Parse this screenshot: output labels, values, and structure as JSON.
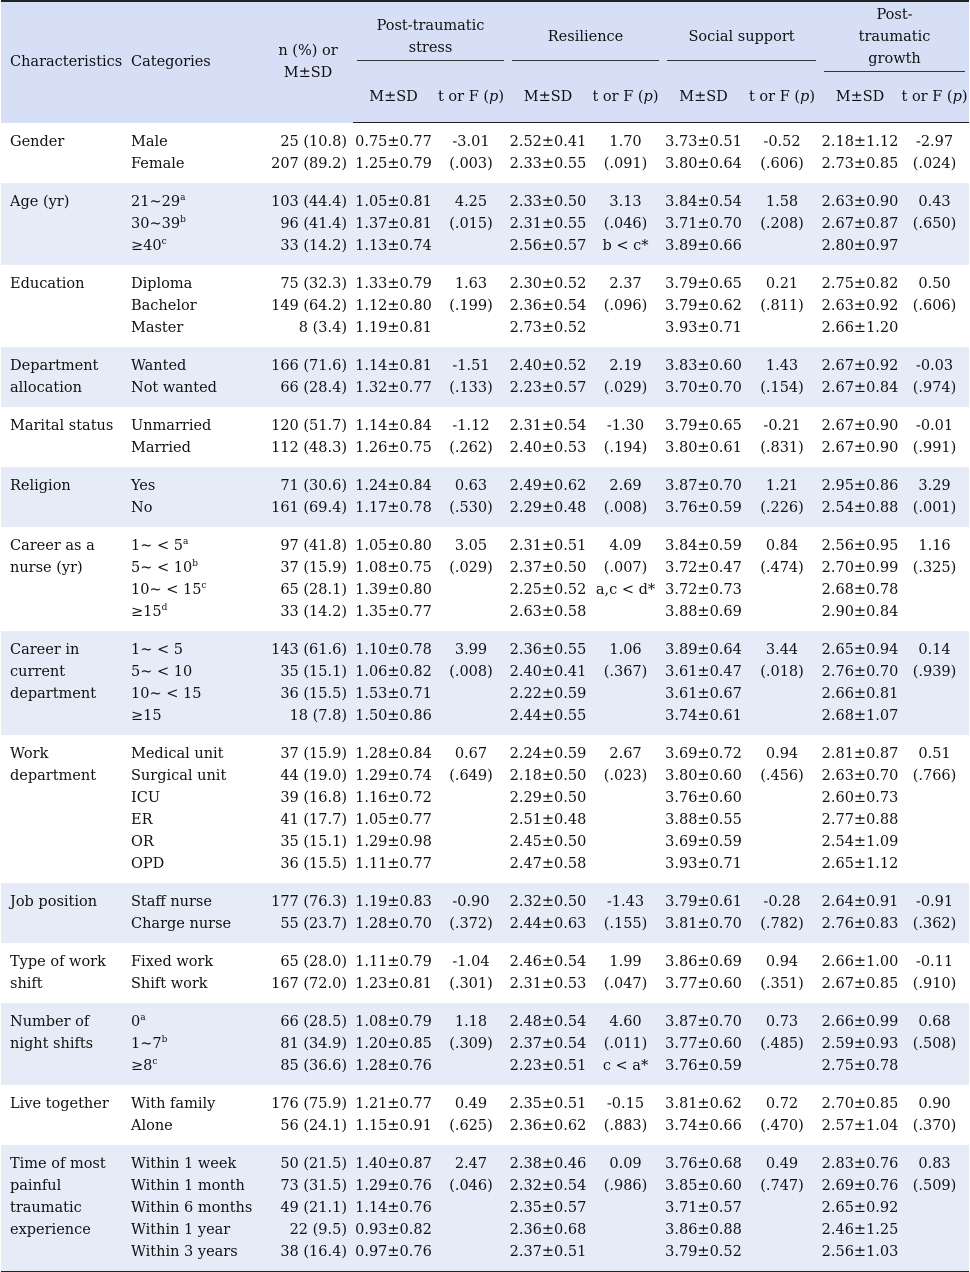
{
  "header": {
    "characteristics": "Characteristics",
    "categories": "Categories",
    "n_label": "n (%) or M±SD",
    "groups": [
      "Post-traumatic stress",
      "Resilience",
      "Social support",
      "Post-traumatic growth"
    ],
    "sub_msd": "M±SD",
    "sub_stat": "t or F (p)"
  },
  "rows": [
    {
      "characteristic": "Gender",
      "cats": [
        [
          "Male"
        ],
        [
          "Female"
        ]
      ],
      "n": [
        "25 (10.8)",
        "207 (89.2)"
      ],
      "pts": [
        "0.75±0.77",
        "1.25±0.79"
      ],
      "pts_t": [
        "-3.01",
        "(.003)"
      ],
      "res": [
        "2.52±0.41",
        "2.33±0.55"
      ],
      "res_t": [
        "1.70",
        "(.091)"
      ],
      "ss": [
        "3.73±0.51",
        "3.80±0.64"
      ],
      "ss_t": [
        "-0.52",
        "(.606)"
      ],
      "ptg": [
        "2.18±1.12",
        "2.73±0.85"
      ],
      "ptg_t": [
        "-2.97",
        "(.024)"
      ]
    },
    {
      "characteristic": "Age (yr)",
      "cats": [
        [
          "21~29",
          "a"
        ],
        [
          "30~39",
          "b"
        ],
        [
          "≥40",
          "c"
        ]
      ],
      "n": [
        "103 (44.4)",
        "96 (41.4)",
        "33 (14.2)"
      ],
      "pts": [
        "1.05±0.81",
        "1.37±0.81",
        "1.13±0.74"
      ],
      "pts_t": [
        "4.25",
        "(.015)"
      ],
      "res": [
        "2.33±0.50",
        "2.31±0.55",
        "2.56±0.57"
      ],
      "res_t": [
        "3.13",
        "(.046)",
        "b < c*"
      ],
      "ss": [
        "3.84±0.54",
        "3.71±0.70",
        "3.89±0.66"
      ],
      "ss_t": [
        "1.58",
        "(.208)"
      ],
      "ptg": [
        "2.63±0.90",
        "2.67±0.87",
        "2.80±0.97"
      ],
      "ptg_t": [
        "0.43",
        "(.650)"
      ]
    },
    {
      "characteristic": "Education",
      "cats": [
        [
          "Diploma"
        ],
        [
          "Bachelor"
        ],
        [
          "Master"
        ]
      ],
      "n": [
        "75 (32.3)",
        "149 (64.2)",
        "8 (3.4)"
      ],
      "pts": [
        "1.33±0.79",
        "1.12±0.80",
        "1.19±0.81"
      ],
      "pts_t": [
        "1.63",
        "(.199)"
      ],
      "res": [
        "2.30±0.52",
        "2.36±0.54",
        "2.73±0.52"
      ],
      "res_t": [
        "2.37",
        "(.096)"
      ],
      "ss": [
        "3.79±0.65",
        "3.79±0.62",
        "3.93±0.71"
      ],
      "ss_t": [
        "0.21",
        "(.811)"
      ],
      "ptg": [
        "2.75±0.82",
        "2.63±0.92",
        "2.66±1.20"
      ],
      "ptg_t": [
        "0.50",
        "(.606)"
      ]
    },
    {
      "characteristic": "Department allocation",
      "cats": [
        [
          "Wanted"
        ],
        [
          "Not wanted"
        ]
      ],
      "n": [
        "166 (71.6)",
        "66 (28.4)"
      ],
      "pts": [
        "1.14±0.81",
        "1.32±0.77"
      ],
      "pts_t": [
        "-1.51",
        "(.133)"
      ],
      "res": [
        "2.40±0.52",
        "2.23±0.57"
      ],
      "res_t": [
        "2.19",
        "(.029)"
      ],
      "ss": [
        "3.83±0.60",
        "3.70±0.70"
      ],
      "ss_t": [
        "1.43",
        "(.154)"
      ],
      "ptg": [
        "2.67±0.92",
        "2.67±0.84"
      ],
      "ptg_t": [
        "-0.03",
        "(.974)"
      ]
    },
    {
      "characteristic": "Marital status",
      "cats": [
        [
          "Unmarried"
        ],
        [
          "Married"
        ]
      ],
      "n": [
        "120 (51.7)",
        "112 (48.3)"
      ],
      "pts": [
        "1.14±0.84",
        "1.26±0.75"
      ],
      "pts_t": [
        "-1.12",
        "(.262)"
      ],
      "res": [
        "2.31±0.54",
        "2.40±0.53"
      ],
      "res_t": [
        "-1.30",
        "(.194)"
      ],
      "ss": [
        "3.79±0.65",
        "3.80±0.61"
      ],
      "ss_t": [
        "-0.21",
        "(.831)"
      ],
      "ptg": [
        "2.67±0.90",
        "2.67±0.90"
      ],
      "ptg_t": [
        "-0.01",
        "(.991)"
      ]
    },
    {
      "characteristic": "Religion",
      "cats": [
        [
          "Yes"
        ],
        [
          "No"
        ]
      ],
      "n": [
        "71 (30.6)",
        "161 (69.4)"
      ],
      "pts": [
        "1.24±0.84",
        "1.17±0.78"
      ],
      "pts_t": [
        "0.63",
        "(.530)"
      ],
      "res": [
        "2.49±0.62",
        "2.29±0.48"
      ],
      "res_t": [
        "2.69",
        "(.008)"
      ],
      "ss": [
        "3.87±0.70",
        "3.76±0.59"
      ],
      "ss_t": [
        "1.21",
        "(.226)"
      ],
      "ptg": [
        "2.95±0.86",
        "2.54±0.88"
      ],
      "ptg_t": [
        "3.29",
        "(.001)"
      ]
    },
    {
      "characteristic": "Career as a nurse (yr)",
      "cats": [
        [
          "1~ < 5",
          "a"
        ],
        [
          "5~ < 10",
          "b"
        ],
        [
          "10~ < 15",
          "c"
        ],
        [
          "≥15",
          "d"
        ]
      ],
      "n": [
        "97 (41.8)",
        "37 (15.9)",
        "65 (28.1)",
        "33 (14.2)"
      ],
      "pts": [
        "1.05±0.80",
        "1.08±0.75",
        "1.39±0.80",
        "1.35±0.77"
      ],
      "pts_t": [
        "3.05",
        "(.029)"
      ],
      "res": [
        "2.31±0.51",
        "2.37±0.50",
        "2.25±0.52",
        "2.63±0.58"
      ],
      "res_t": [
        "4.09",
        "(.007)",
        "a,c < d*"
      ],
      "ss": [
        "3.84±0.59",
        "3.72±0.47",
        "3.72±0.73",
        "3.88±0.69"
      ],
      "ss_t": [
        "0.84",
        "(.474)"
      ],
      "ptg": [
        "2.56±0.95",
        "2.70±0.99",
        "2.68±0.78",
        "2.90±0.84"
      ],
      "ptg_t": [
        "1.16",
        "(.325)"
      ]
    },
    {
      "characteristic": "Career in current department",
      "cats": [
        [
          "1~ < 5"
        ],
        [
          "5~ < 10"
        ],
        [
          "10~ < 15"
        ],
        [
          "≥15"
        ]
      ],
      "n": [
        "143 (61.6)",
        "35 (15.1)",
        "36 (15.5)",
        "18 (7.8)"
      ],
      "pts": [
        "1.10±0.78",
        "1.06±0.82",
        "1.53±0.71",
        "1.50±0.86"
      ],
      "pts_t": [
        "3.99",
        "(.008)"
      ],
      "res": [
        "2.36±0.55",
        "2.40±0.41",
        "2.22±0.59",
        "2.44±0.55"
      ],
      "res_t": [
        "1.06",
        "(.367)"
      ],
      "ss": [
        "3.89±0.64",
        "3.61±0.47",
        "3.61±0.67",
        "3.74±0.61"
      ],
      "ss_t": [
        "3.44",
        "(.018)"
      ],
      "ptg": [
        "2.65±0.94",
        "2.76±0.70",
        "2.66±0.81",
        "2.68±1.07"
      ],
      "ptg_t": [
        "0.14",
        "(.939)"
      ]
    },
    {
      "characteristic": "Work department",
      "cats": [
        [
          "Medical unit"
        ],
        [
          "Surgical unit"
        ],
        [
          "ICU"
        ],
        [
          "ER"
        ],
        [
          "OR"
        ],
        [
          "OPD"
        ]
      ],
      "n": [
        "37 (15.9)",
        "44 (19.0)",
        "39 (16.8)",
        "41 (17.7)",
        "35 (15.1)",
        "36 (15.5)"
      ],
      "pts": [
        "1.28±0.84",
        "1.29±0.74",
        "1.16±0.72",
        "1.05±0.77",
        "1.29±0.98",
        "1.11±0.77"
      ],
      "pts_t": [
        "0.67",
        "(.649)"
      ],
      "res": [
        "2.24±0.59",
        "2.18±0.50",
        "2.29±0.50",
        "2.51±0.48",
        "2.45±0.50",
        "2.47±0.58"
      ],
      "res_t": [
        "2.67",
        "(.023)"
      ],
      "ss": [
        "3.69±0.72",
        "3.80±0.60",
        "3.76±0.60",
        "3.88±0.55",
        "3.69±0.59",
        "3.93±0.71"
      ],
      "ss_t": [
        "0.94",
        "(.456)"
      ],
      "ptg": [
        "2.81±0.87",
        "2.63±0.70",
        "2.60±0.73",
        "2.77±0.88",
        "2.54±1.09",
        "2.65±1.12"
      ],
      "ptg_t": [
        "0.51",
        "(.766)"
      ]
    },
    {
      "characteristic": "Job position",
      "cats": [
        [
          "Staff nurse"
        ],
        [
          "Charge nurse"
        ]
      ],
      "n": [
        "177 (76.3)",
        "55 (23.7)"
      ],
      "pts": [
        "1.19±0.83",
        "1.28±0.70"
      ],
      "pts_t": [
        "-0.90",
        "(.372)"
      ],
      "res": [
        "2.32±0.50",
        "2.44±0.63"
      ],
      "res_t": [
        "-1.43",
        "(.155)"
      ],
      "ss": [
        "3.79±0.61",
        "3.81±0.70"
      ],
      "ss_t": [
        "-0.28",
        "(.782)"
      ],
      "ptg": [
        "2.64±0.91",
        "2.76±0.83"
      ],
      "ptg_t": [
        "-0.91",
        "(.362)"
      ]
    },
    {
      "characteristic": "Type of work shift",
      "cats": [
        [
          "Fixed work"
        ],
        [
          "Shift work"
        ]
      ],
      "n": [
        "65 (28.0)",
        "167 (72.0)"
      ],
      "pts": [
        "1.11±0.79",
        "1.23±0.81"
      ],
      "pts_t": [
        "-1.04",
        "(.301)"
      ],
      "res": [
        "2.46±0.54",
        "2.31±0.53"
      ],
      "res_t": [
        "1.99",
        "(.047)"
      ],
      "ss": [
        "3.86±0.69",
        "3.77±0.60"
      ],
      "ss_t": [
        "0.94",
        "(.351)"
      ],
      "ptg": [
        "2.66±1.00",
        "2.67±0.85"
      ],
      "ptg_t": [
        "-0.11",
        "(.910)"
      ]
    },
    {
      "characteristic": "Number of night shifts",
      "cats": [
        [
          "0",
          "a"
        ],
        [
          "1~7",
          "b"
        ],
        [
          "≥8",
          "c"
        ]
      ],
      "n": [
        "66 (28.5)",
        "81 (34.9)",
        "85 (36.6)"
      ],
      "pts": [
        "1.08±0.79",
        "1.20±0.85",
        "1.28±0.76"
      ],
      "pts_t": [
        "1.18",
        "(.309)"
      ],
      "res": [
        "2.48±0.54",
        "2.37±0.54",
        "2.23±0.51"
      ],
      "res_t": [
        "4.60",
        "(.011)",
        "c < a*"
      ],
      "ss": [
        "3.87±0.70",
        "3.77±0.60",
        "3.76±0.59"
      ],
      "ss_t": [
        "0.73",
        "(.485)"
      ],
      "ptg": [
        "2.66±0.99",
        "2.59±0.93",
        "2.75±0.78"
      ],
      "ptg_t": [
        "0.68",
        "(.508)"
      ]
    },
    {
      "characteristic": "Live together",
      "cats": [
        [
          "With family"
        ],
        [
          "Alone"
        ]
      ],
      "n": [
        "176 (75.9)",
        "56 (24.1)"
      ],
      "pts": [
        "1.21±0.77",
        "1.15±0.91"
      ],
      "pts_t": [
        "0.49",
        "(.625)"
      ],
      "res": [
        "2.35±0.51",
        "2.36±0.62"
      ],
      "res_t": [
        "-0.15",
        "(.883)"
      ],
      "ss": [
        "3.81±0.62",
        "3.74±0.66"
      ],
      "ss_t": [
        "0.72",
        "(.470)"
      ],
      "ptg": [
        "2.70±0.85",
        "2.57±1.04"
      ],
      "ptg_t": [
        "0.90",
        "(.370)"
      ]
    },
    {
      "characteristic": "Time of most painful traumatic experience",
      "cats": [
        [
          "Within 1 week"
        ],
        [
          "Within 1 month"
        ],
        [
          "Within 6 months"
        ],
        [
          "Within 1 year"
        ],
        [
          "Within 3 years"
        ]
      ],
      "n": [
        "50 (21.5)",
        "73 (31.5)",
        "49 (21.1)",
        "22 (9.5)",
        "38 (16.4)"
      ],
      "pts": [
        "1.40±0.87",
        "1.29±0.76",
        "1.14±0.76",
        "0.93±0.82",
        "0.97±0.76"
      ],
      "pts_t": [
        "2.47",
        "(.046)"
      ],
      "res": [
        "2.38±0.46",
        "2.32±0.54",
        "2.35±0.57",
        "2.36±0.68",
        "2.37±0.51"
      ],
      "res_t": [
        "0.09",
        "(.986)"
      ],
      "ss": [
        "3.76±0.68",
        "3.85±0.60",
        "3.71±0.57",
        "3.86±0.88",
        "3.79±0.52"
      ],
      "ss_t": [
        "0.49",
        "(.747)"
      ],
      "ptg": [
        "2.83±0.76",
        "2.69±0.76",
        "2.65±0.92",
        "2.46±1.25",
        "2.56±1.03"
      ],
      "ptg_t": [
        "0.83",
        "(.509)"
      ]
    }
  ]
}
